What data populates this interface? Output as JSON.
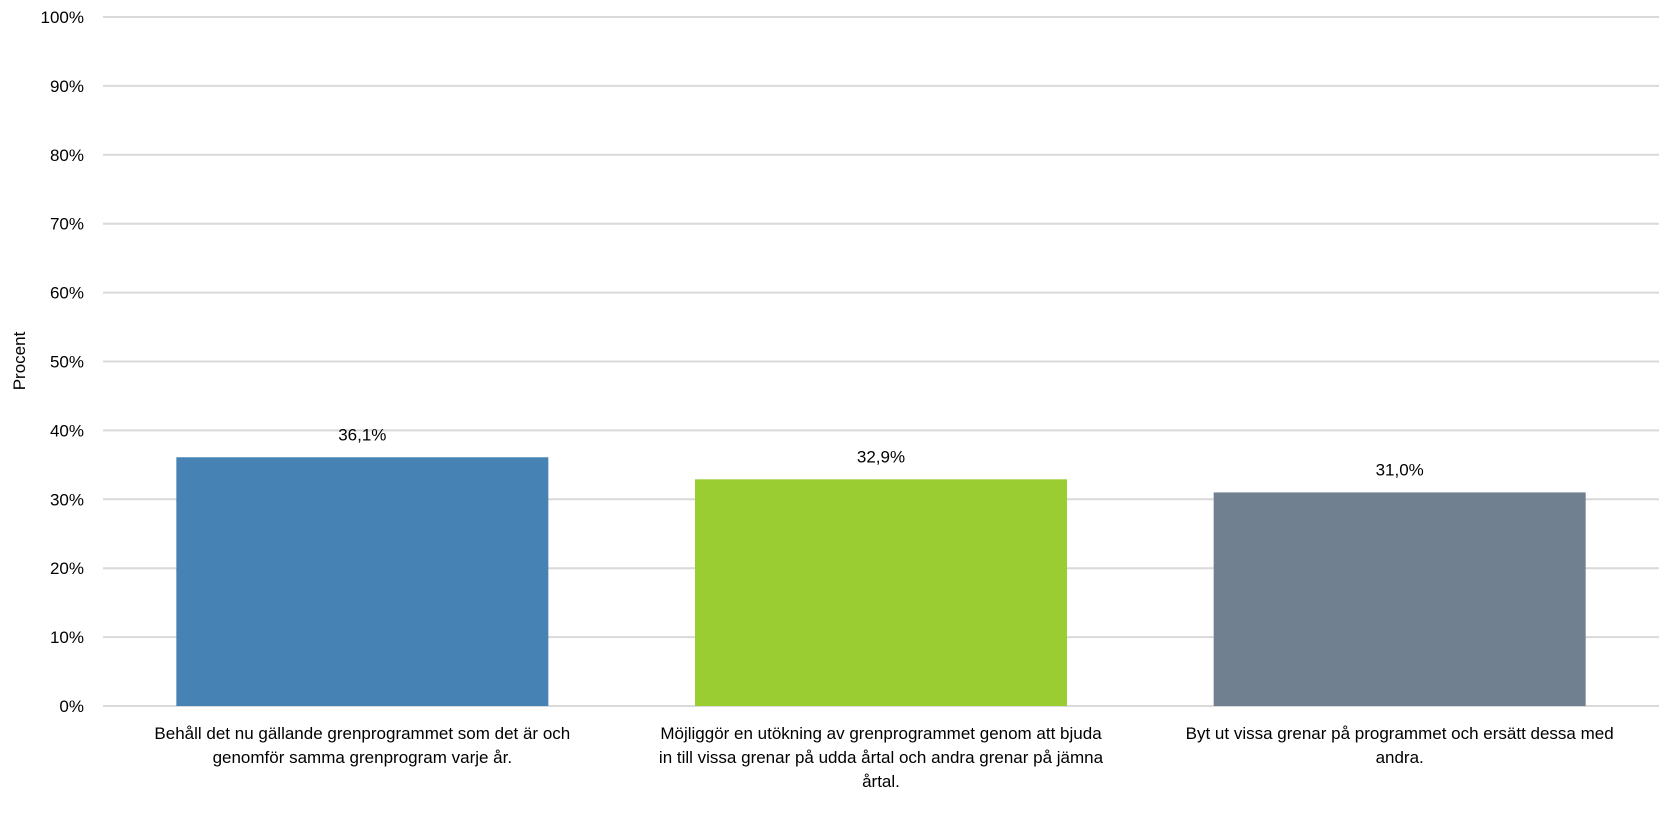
{
  "chart_data": {
    "type": "bar",
    "title": "",
    "xlabel": "",
    "ylabel": "Procent",
    "ylim": [
      0,
      100
    ],
    "yticks": [
      "0%",
      "10%",
      "20%",
      "30%",
      "40%",
      "50%",
      "60%",
      "70%",
      "80%",
      "90%",
      "100%"
    ],
    "grid": true,
    "legend": "none",
    "categories": [
      "Behåll det nu gällande grenprogrammet som det är och genomför samma grenprogram varje år.",
      "Möjliggör en utökning av grenprogrammet genom att bjuda in till vissa grenar på udda årtal och andra grenar på jämna årtal.",
      "Byt ut vissa grenar på programmet och ersätt dessa med andra."
    ],
    "category_label_lines": [
      [
        "Behåll det nu gällande grenprogrammet som det är och",
        "genomför samma grenprogram varje år."
      ],
      [
        "Möjliggör en utökning av grenprogrammet genom att bjuda",
        "in till vissa grenar på udda årtal och andra grenar på jämna",
        "årtal."
      ],
      [
        "Byt ut vissa grenar på programmet och ersätt dessa med",
        "andra."
      ]
    ],
    "values": [
      36.1,
      32.9,
      31.0
    ],
    "data_labels": [
      "36,1%",
      "32,9%",
      "31,0%"
    ],
    "colors": [
      "#4682b4",
      "#9acd32",
      "#708090"
    ],
    "gridline_color": "#d9d9d9"
  }
}
